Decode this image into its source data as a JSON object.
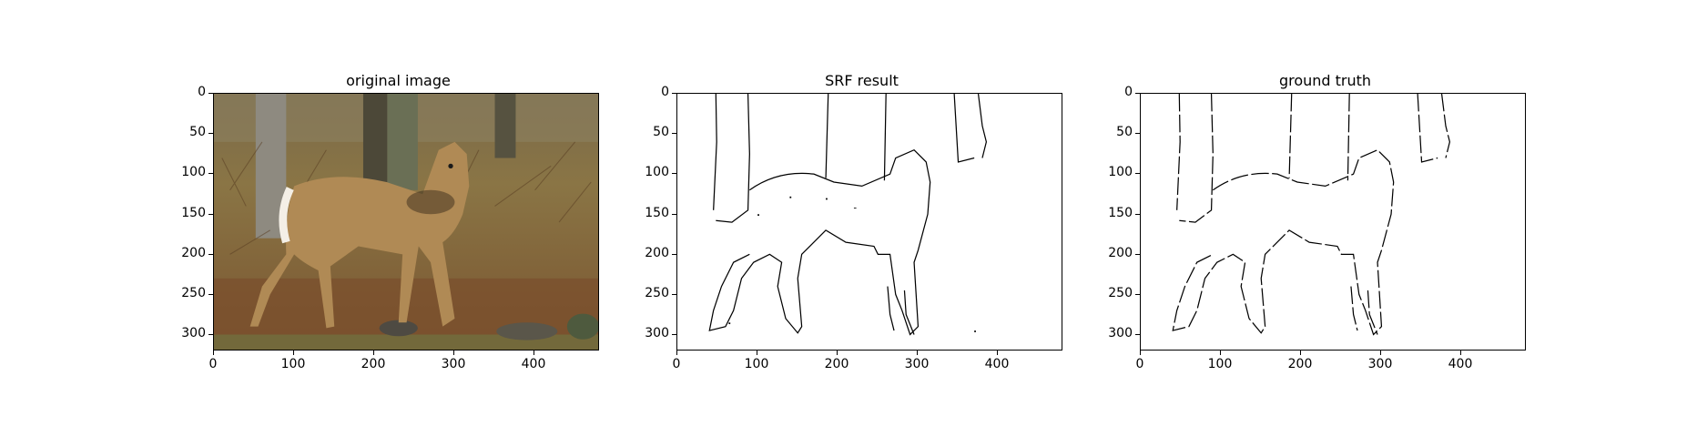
{
  "figure": {
    "panels": [
      {
        "title": "original image",
        "kind": "photo"
      },
      {
        "title": "SRF result",
        "kind": "edges"
      },
      {
        "title": "ground truth",
        "kind": "edges"
      }
    ],
    "axes": {
      "y_ticks": [
        "0",
        "50",
        "100",
        "150",
        "200",
        "250",
        "300"
      ],
      "x_ticks": [
        "0",
        "100",
        "200",
        "300",
        "400"
      ],
      "x_range": [
        0,
        481
      ],
      "y_range": [
        0,
        321
      ]
    },
    "photo_subject": "deer-standing-in-forest-clearing",
    "colors": {
      "axis": "#000000",
      "edge_line": "#000000",
      "photo_ground": "#8a6a3f",
      "photo_deer": "#b08a55",
      "photo_tree": "#6b6b6b"
    }
  }
}
